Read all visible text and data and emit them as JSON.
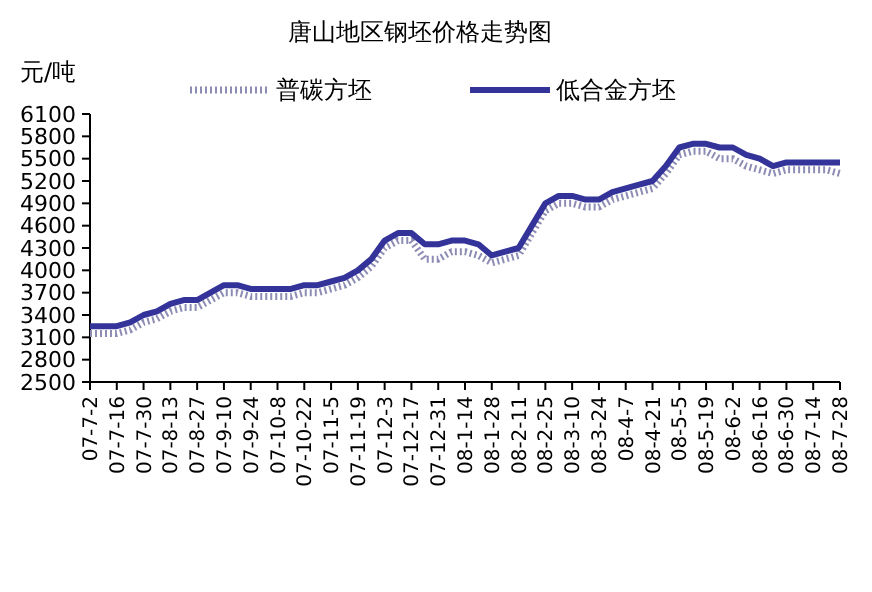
{
  "chart_data": {
    "type": "line",
    "title": "唐山地区钢坯价格走势图",
    "ylabel": "元/吨",
    "categories": [
      "07-7-2",
      null,
      "07-7-16",
      null,
      "07-7-30",
      null,
      "07-8-13",
      null,
      "07-8-27",
      null,
      "07-9-10",
      null,
      "07-9-24",
      null,
      "07-10-8",
      null,
      "07-10-22",
      null,
      "07-11-5",
      null,
      "07-11-19",
      null,
      "07-12-3",
      null,
      "07-12-17",
      null,
      "07-12-31",
      null,
      "08-1-14",
      null,
      "08-1-28",
      null,
      "08-2-11",
      null,
      "08-2-25",
      null,
      "08-3-10",
      null,
      "08-3-24",
      null,
      "08-4-7",
      null,
      "08-4-21",
      null,
      "08-5-5",
      null,
      "08-5-19",
      null,
      "08-6-2",
      null,
      "08-6-16",
      null,
      "08-6-30",
      null,
      "08-7-14",
      null,
      "08-7-28"
    ],
    "series": [
      {
        "name": "普碳方坯",
        "color": "#8c8cb4",
        "line_style": "dotted",
        "values": [
          3150,
          3150,
          3150,
          3200,
          3300,
          3350,
          3450,
          3500,
          3500,
          3600,
          3700,
          3700,
          3650,
          3650,
          3650,
          3650,
          3700,
          3700,
          3750,
          3800,
          3900,
          4050,
          4300,
          4400,
          4400,
          4150,
          4150,
          4250,
          4250,
          4200,
          4100,
          4150,
          4200,
          4500,
          4800,
          4900,
          4900,
          4850,
          4850,
          4950,
          5000,
          5050,
          5100,
          5300,
          5550,
          5600,
          5600,
          5500,
          5500,
          5400,
          5350,
          5300,
          5350,
          5350,
          5350,
          5350,
          5300
        ]
      },
      {
        "name": "低合金方坯",
        "color": "#333399",
        "line_style": "solid",
        "values": [
          3250,
          3250,
          3250,
          3300,
          3400,
          3450,
          3550,
          3600,
          3600,
          3700,
          3800,
          3800,
          3750,
          3750,
          3750,
          3750,
          3800,
          3800,
          3850,
          3900,
          4000,
          4150,
          4400,
          4500,
          4500,
          4350,
          4350,
          4400,
          4400,
          4350,
          4200,
          4250,
          4300,
          4600,
          4900,
          5000,
          5000,
          4950,
          4950,
          5050,
          5100,
          5150,
          5200,
          5400,
          5650,
          5700,
          5700,
          5650,
          5650,
          5550,
          5500,
          5400,
          5450,
          5450,
          5450,
          5450,
          5450
        ]
      }
    ],
    "ylim": [
      2500,
      6100
    ],
    "yticks": [
      2500,
      2800,
      3100,
      3400,
      3700,
      4000,
      4300,
      4600,
      4900,
      5200,
      5500,
      5800,
      6100
    ],
    "legend": "top",
    "grid": false,
    "marker": "none"
  }
}
